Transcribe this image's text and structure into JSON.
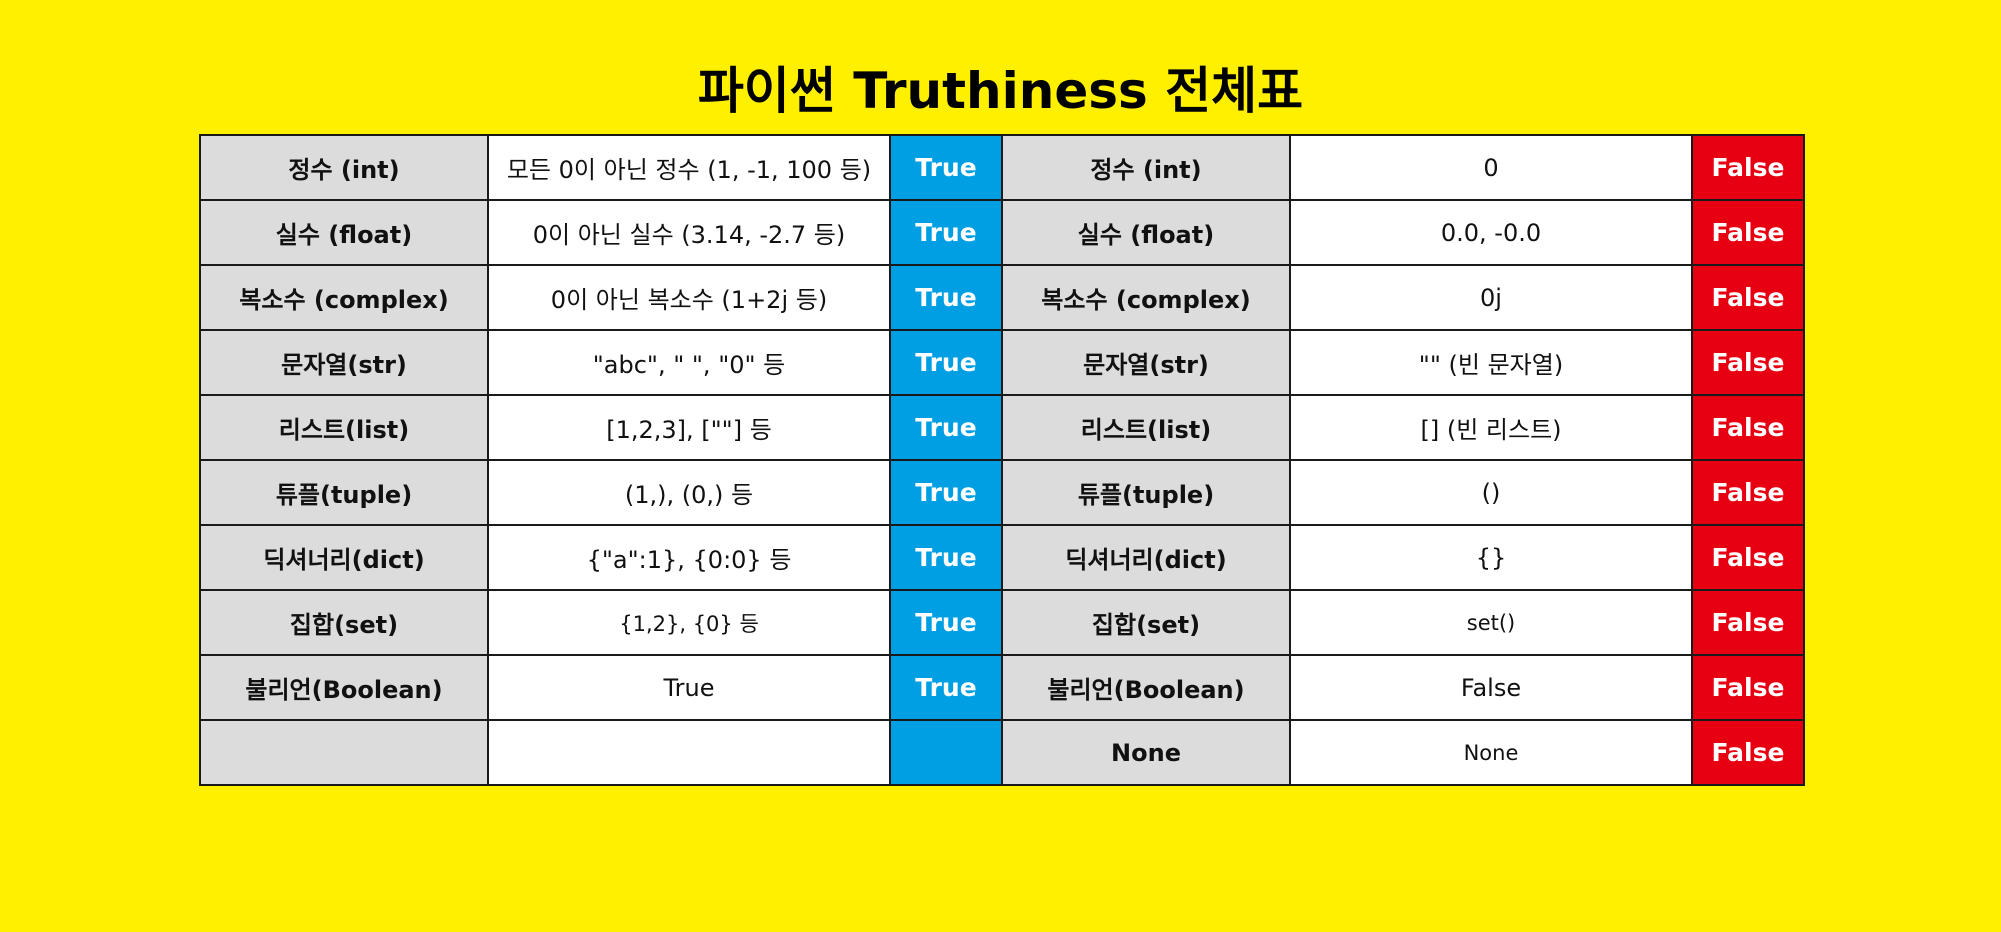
{
  "title": "파이썬 Truthiness 전체표",
  "colors": {
    "background": "#FFF000",
    "true_badge": "#009FE3",
    "false_badge": "#E60012",
    "type_cell": "#DCDCDC"
  },
  "rows": [
    {
      "true_type": "정수 (int)",
      "true_example": "모든 0이 아닌 정수 (1, -1, 100 등)",
      "true_label": "True",
      "false_type": "정수 (int)",
      "false_example": "0",
      "false_label": "False"
    },
    {
      "true_type": "실수 (float)",
      "true_example": "0이 아닌 실수 (3.14, -2.7 등)",
      "true_label": "True",
      "false_type": "실수 (float)",
      "false_example": "0.0, -0.0",
      "false_label": "False"
    },
    {
      "true_type": "복소수 (complex)",
      "true_example": "0이 아닌 복소수 (1+2j 등)",
      "true_label": "True",
      "false_type": "복소수 (complex)",
      "false_example": "0j",
      "false_label": "False"
    },
    {
      "true_type": "문자열(str)",
      "true_example": "\"abc\", \" \", \"0\" 등",
      "true_label": "True",
      "false_type": "문자열(str)",
      "false_example": "\"\" (빈 문자열)",
      "false_label": "False"
    },
    {
      "true_type": "리스트(list)",
      "true_example": "[1,2,3], [\"\"] 등",
      "true_label": "True",
      "false_type": "리스트(list)",
      "false_example": "[] (빈 리스트)",
      "false_label": "False"
    },
    {
      "true_type": "튜플(tuple)",
      "true_example": "(1,), (0,) 등",
      "true_label": "True",
      "false_type": "튜플(tuple)",
      "false_example": "()",
      "false_label": "False"
    },
    {
      "true_type": "딕셔너리(dict)",
      "true_example": "{\"a\":1}, {0:0} 등",
      "true_label": "True",
      "false_type": "딕셔너리(dict)",
      "false_example": "{}",
      "false_label": "False"
    },
    {
      "true_type": "집합(set)",
      "true_example": "{1,2}, {0} 등",
      "true_label": "True",
      "false_type": "집합(set)",
      "false_example": "set()",
      "false_label": "False"
    },
    {
      "true_type": "불리언(Boolean)",
      "true_example": "True",
      "true_label": "True",
      "false_type": "불리언(Boolean)",
      "false_example": "False",
      "false_label": "False"
    },
    {
      "true_type": "",
      "true_example": "",
      "true_label": "",
      "false_type": "None",
      "false_example": "None",
      "false_label": "False"
    }
  ]
}
